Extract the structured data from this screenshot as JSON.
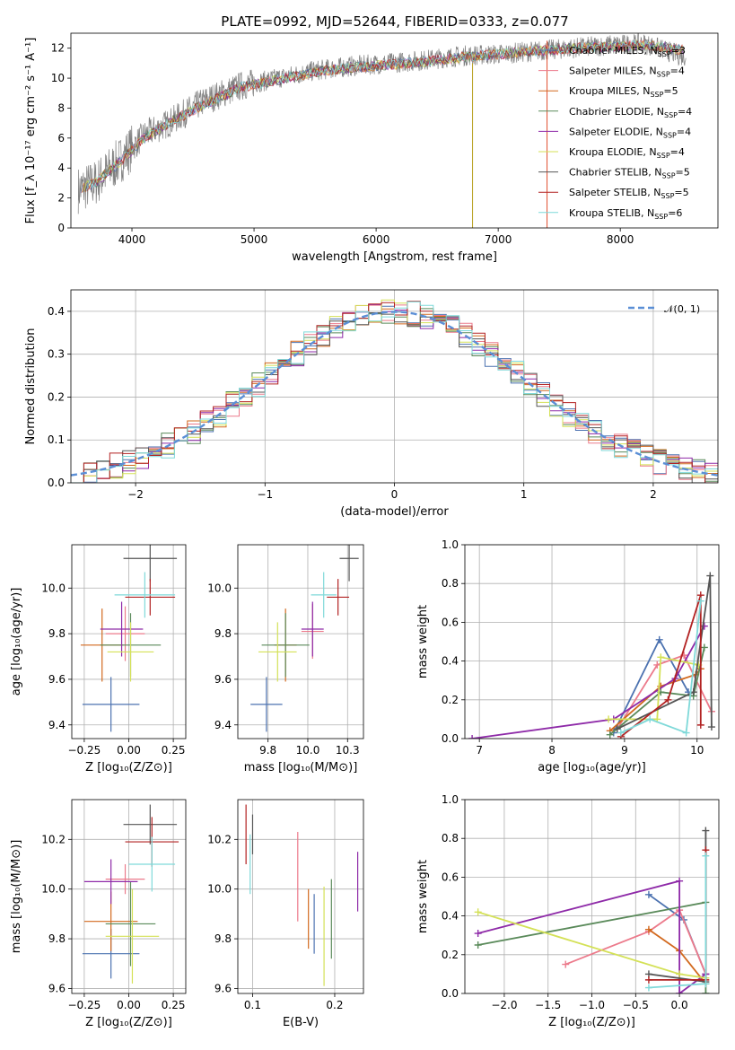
{
  "figure": {
    "title": "PLATE=0992, MJD=52644, FIBERID=0333, z=0.077"
  },
  "colors": {
    "model_colors": [
      "#4c72b0",
      "#ec7a8b",
      "#d2691e",
      "#5a8a5a",
      "#8e2aa8",
      "#d4e157",
      "#555555",
      "#b22222",
      "#7fd9d9"
    ],
    "data_gray": "#808080",
    "normal_curve": "#5b8fd6"
  },
  "legend": {
    "entries": [
      "Chabrier MILES, N_SSP=3",
      "Salpeter MILES, N_SSP=4",
      "Kroupa MILES, N_SSP=5",
      "Chabrier ELODIE, N_SSP=4",
      "Salpeter ELODIE, N_SSP=4",
      "Kroupa ELODIE, N_SSP=4",
      "Chabrier STELIB, N_SSP=5",
      "Salpeter STELIB, N_SSP=5",
      "Kroupa STELIB, N_SSP=6"
    ]
  },
  "chart_data": [
    {
      "id": "spectrum",
      "type": "line",
      "xlabel": "wavelength [Angstrom, rest frame]",
      "ylabel": "Flux [f_λ 10^-17 erg cm^-2 s^-1 A^-1]",
      "xlim": [
        3500,
        8800
      ],
      "ylim": [
        0,
        13
      ],
      "xticks": [
        4000,
        5000,
        6000,
        7000,
        8000
      ],
      "yticks": [
        0,
        2,
        4,
        6,
        8,
        10,
        12
      ],
      "series": [
        {
          "name": "data",
          "x": [
            3550,
            3700,
            3900,
            4100,
            4300,
            4600,
            4900,
            5200,
            5500,
            5800,
            6100,
            6400,
            6700,
            7000,
            7300,
            7600,
            7900,
            8200,
            8500
          ],
          "y": [
            2.5,
            3.0,
            4.5,
            6.2,
            7.0,
            8.5,
            9.5,
            10.0,
            10.5,
            10.8,
            11.0,
            11.2,
            11.5,
            11.6,
            11.8,
            12.0,
            12.2,
            12.3,
            11.5
          ]
        },
        {
          "name": "model",
          "x": [
            3550,
            3700,
            3900,
            4100,
            4300,
            4600,
            4900,
            5200,
            5500,
            5800,
            6100,
            6400,
            6700,
            7000,
            7300,
            7600,
            7900,
            8200,
            8500
          ],
          "y": [
            2.6,
            3.0,
            4.4,
            6.0,
            7.0,
            8.3,
            9.4,
            9.9,
            10.4,
            10.7,
            10.9,
            11.1,
            11.4,
            11.6,
            11.8,
            12.0,
            12.1,
            12.2,
            11.9
          ]
        }
      ]
    },
    {
      "id": "residuals",
      "type": "area",
      "xlabel": "(data-model)/error",
      "ylabel": "Normed distribution",
      "xlim": [
        -2.5,
        2.5
      ],
      "ylim": [
        0,
        0.45
      ],
      "xticks": [
        -2,
        -1,
        0,
        1,
        2
      ],
      "yticks": [
        0.0,
        0.1,
        0.2,
        0.3,
        0.4
      ],
      "legend": "𝒩(0, 1)",
      "bin_width": 0.1
    },
    {
      "id": "age_vs_Z",
      "type": "scatter",
      "xlabel": "Z [log10(Z/Z⊙)]",
      "ylabel": "age [log10(age/yr)]",
      "xlim": [
        -0.32,
        0.32
      ],
      "ylim": [
        9.34,
        10.19
      ],
      "xticks": [
        -0.25,
        0.0,
        0.25
      ],
      "yticks": [
        9.4,
        9.6,
        9.8,
        10.0
      ],
      "points": [
        {
          "x": -0.1,
          "y": 9.49,
          "xerr": 0.16,
          "yerr": 0.12
        },
        {
          "x": -0.02,
          "y": 9.8,
          "xerr": 0.11,
          "yerr": 0.12
        },
        {
          "x": -0.15,
          "y": 9.75,
          "xerr": 0.12,
          "yerr": 0.16
        },
        {
          "x": 0.01,
          "y": 9.75,
          "xerr": 0.17,
          "yerr": 0.14
        },
        {
          "x": -0.04,
          "y": 9.82,
          "xerr": 0.12,
          "yerr": 0.12
        },
        {
          "x": 0.01,
          "y": 9.72,
          "xerr": 0.13,
          "yerr": 0.13
        },
        {
          "x": 0.12,
          "y": 10.13,
          "xerr": 0.15,
          "yerr": 0.1
        },
        {
          "x": 0.12,
          "y": 9.96,
          "xerr": 0.14,
          "yerr": 0.08
        },
        {
          "x": 0.09,
          "y": 9.97,
          "xerr": 0.17,
          "yerr": 0.1
        }
      ]
    },
    {
      "id": "age_vs_mass",
      "type": "scatter",
      "xlabel": "mass [log10(M/M⊙)]",
      "ylabel": "",
      "xlim": [
        9.56,
        10.35
      ],
      "ylim": [
        9.34,
        10.19
      ],
      "xticks": [
        9.75,
        10.0,
        10.25
      ],
      "yticks": [
        9.4,
        9.6,
        9.8,
        10.0
      ],
      "points": [
        {
          "x": 9.74,
          "y": 9.49,
          "xerr": 0.1,
          "yerr": 0.12
        },
        {
          "x": 10.03,
          "y": 9.81,
          "xerr": 0.07,
          "yerr": 0.12
        },
        {
          "x": 9.86,
          "y": 9.75,
          "xerr": 0.07,
          "yerr": 0.16
        },
        {
          "x": 9.86,
          "y": 9.75,
          "xerr": 0.15,
          "yerr": 0.14
        },
        {
          "x": 10.03,
          "y": 9.82,
          "xerr": 0.07,
          "yerr": 0.12
        },
        {
          "x": 9.81,
          "y": 9.72,
          "xerr": 0.12,
          "yerr": 0.13
        },
        {
          "x": 10.26,
          "y": 10.13,
          "xerr": 0.06,
          "yerr": 0.1
        },
        {
          "x": 10.19,
          "y": 9.96,
          "xerr": 0.07,
          "yerr": 0.08
        },
        {
          "x": 10.1,
          "y": 9.97,
          "xerr": 0.08,
          "yerr": 0.1
        }
      ]
    },
    {
      "id": "mass_weight_vs_age",
      "type": "line",
      "xlabel": "age [log10(age/yr)]",
      "ylabel": "mass weight",
      "xlim": [
        6.8,
        10.3
      ],
      "ylim": [
        0,
        1
      ],
      "xticks": [
        7,
        8,
        9,
        10
      ],
      "yticks": [
        0.0,
        0.2,
        0.4,
        0.6,
        0.8,
        1.0
      ],
      "series": [
        {
          "x": [
            8.85,
            9.48,
            9.88
          ],
          "y": [
            0.03,
            0.51,
            0.24
          ]
        },
        {
          "x": [
            8.9,
            9.45,
            9.82,
            10.2
          ],
          "y": [
            0.05,
            0.38,
            0.43,
            0.14
          ]
        },
        {
          "x": [
            8.8,
            9.5,
            9.98,
            10.05
          ],
          "y": [
            0.04,
            0.27,
            0.33,
            0.36
          ]
        },
        {
          "x": [
            8.8,
            9.5,
            9.95,
            10.1
          ],
          "y": [
            0.02,
            0.24,
            0.22,
            0.47
          ]
        },
        {
          "x": [
            6.9,
            8.85,
            9.7,
            10.1
          ],
          "y": [
            0.0,
            0.1,
            0.31,
            0.58
          ]
        },
        {
          "x": [
            8.78,
            9.45,
            9.5,
            10.02
          ],
          "y": [
            0.1,
            0.1,
            0.42,
            0.38
          ]
        },
        {
          "x": [
            8.9,
            9.95,
            10.18,
            10.2
          ],
          "y": [
            0.05,
            0.24,
            0.84,
            0.06
          ]
        },
        {
          "x": [
            8.95,
            9.6,
            10.05,
            10.05
          ],
          "y": [
            0.01,
            0.2,
            0.74,
            0.07
          ]
        },
        {
          "x": [
            8.95,
            9.35,
            9.85,
            10.05
          ],
          "y": [
            0.03,
            0.1,
            0.03,
            0.71
          ]
        }
      ]
    },
    {
      "id": "mass_vs_Z",
      "type": "scatter",
      "xlabel": "Z [log10(Z/Z⊙)]",
      "ylabel": "mass [log10(M/M⊙)]",
      "xlim": [
        -0.32,
        0.32
      ],
      "ylim": [
        9.58,
        10.36
      ],
      "xticks": [
        -0.25,
        0.0,
        0.25
      ],
      "yticks": [
        9.6,
        9.8,
        10.0,
        10.2
      ],
      "points": [
        {
          "x": -0.1,
          "y": 9.74,
          "xerr": 0.16,
          "yerr": 0.1
        },
        {
          "x": -0.02,
          "y": 10.04,
          "xerr": 0.11,
          "yerr": 0.06
        },
        {
          "x": -0.1,
          "y": 9.87,
          "xerr": 0.15,
          "yerr": 0.12
        },
        {
          "x": 0.01,
          "y": 9.86,
          "xerr": 0.14,
          "yerr": 0.17
        },
        {
          "x": -0.1,
          "y": 10.03,
          "xerr": 0.15,
          "yerr": 0.09
        },
        {
          "x": 0.02,
          "y": 9.81,
          "xerr": 0.15,
          "yerr": 0.19
        },
        {
          "x": 0.12,
          "y": 10.26,
          "xerr": 0.15,
          "yerr": 0.08
        },
        {
          "x": 0.13,
          "y": 10.19,
          "xerr": 0.15,
          "yerr": 0.1
        },
        {
          "x": 0.13,
          "y": 10.1,
          "xerr": 0.13,
          "yerr": 0.11
        }
      ]
    },
    {
      "id": "mass_vs_EBV",
      "type": "scatter",
      "xlabel": "E(B-V)",
      "ylabel": "",
      "xlim": [
        0.082,
        0.235
      ],
      "ylim": [
        9.58,
        10.36
      ],
      "xticks": [
        0.1,
        0.2
      ],
      "yticks": [
        9.6,
        9.8,
        10.0,
        10.2
      ],
      "points": [
        {
          "x": 0.175,
          "y": 9.86,
          "yerr": 0.12
        },
        {
          "x": 0.155,
          "y": 10.05,
          "yerr": 0.18
        },
        {
          "x": 0.168,
          "y": 9.88,
          "yerr": 0.12
        },
        {
          "x": 0.196,
          "y": 9.88,
          "yerr": 0.16
        },
        {
          "x": 0.228,
          "y": 10.03,
          "yerr": 0.12
        },
        {
          "x": 0.187,
          "y": 9.81,
          "yerr": 0.2
        },
        {
          "x": 0.1,
          "y": 10.22,
          "yerr": 0.08
        },
        {
          "x": 0.092,
          "y": 10.22,
          "yerr": 0.12
        },
        {
          "x": 0.097,
          "y": 10.1,
          "yerr": 0.12
        }
      ]
    },
    {
      "id": "mass_weight_vs_Z",
      "type": "line",
      "xlabel": "Z [log10(Z/Z⊙)]",
      "ylabel": "mass weight",
      "xlim": [
        -2.45,
        0.45
      ],
      "ylim": [
        0,
        1
      ],
      "xticks": [
        -2.0,
        -1.5,
        -1.0,
        -0.5,
        0.0
      ],
      "yticks": [
        0.0,
        0.2,
        0.4,
        0.6,
        0.8,
        1.0
      ],
      "series": [
        {
          "x": [
            -0.35,
            0.05,
            0.3
          ],
          "y": [
            0.51,
            0.38,
            0.1
          ]
        },
        {
          "x": [
            -1.3,
            -0.35,
            0.0,
            0.3
          ],
          "y": [
            0.15,
            0.32,
            0.43,
            0.1
          ]
        },
        {
          "x": [
            -0.35,
            0.0,
            0.3
          ],
          "y": [
            0.33,
            0.22,
            0.05
          ]
        },
        {
          "x": [
            -2.3,
            0.3,
            0.3
          ],
          "y": [
            0.25,
            0.47,
            0.0
          ]
        },
        {
          "x": [
            -2.3,
            0.0,
            0.0,
            0.3
          ],
          "y": [
            0.31,
            0.58,
            0.0,
            0.1
          ]
        },
        {
          "x": [
            -2.3,
            0.0,
            0.3
          ],
          "y": [
            0.42,
            0.1,
            0.08
          ]
        },
        {
          "x": [
            -0.35,
            0.3,
            0.3
          ],
          "y": [
            0.1,
            0.06,
            0.84
          ]
        },
        {
          "x": [
            -0.35,
            0.3,
            0.3
          ],
          "y": [
            0.07,
            0.07,
            0.74
          ]
        },
        {
          "x": [
            -0.35,
            0.3,
            0.3
          ],
          "y": [
            0.03,
            0.05,
            0.71
          ]
        }
      ]
    }
  ]
}
